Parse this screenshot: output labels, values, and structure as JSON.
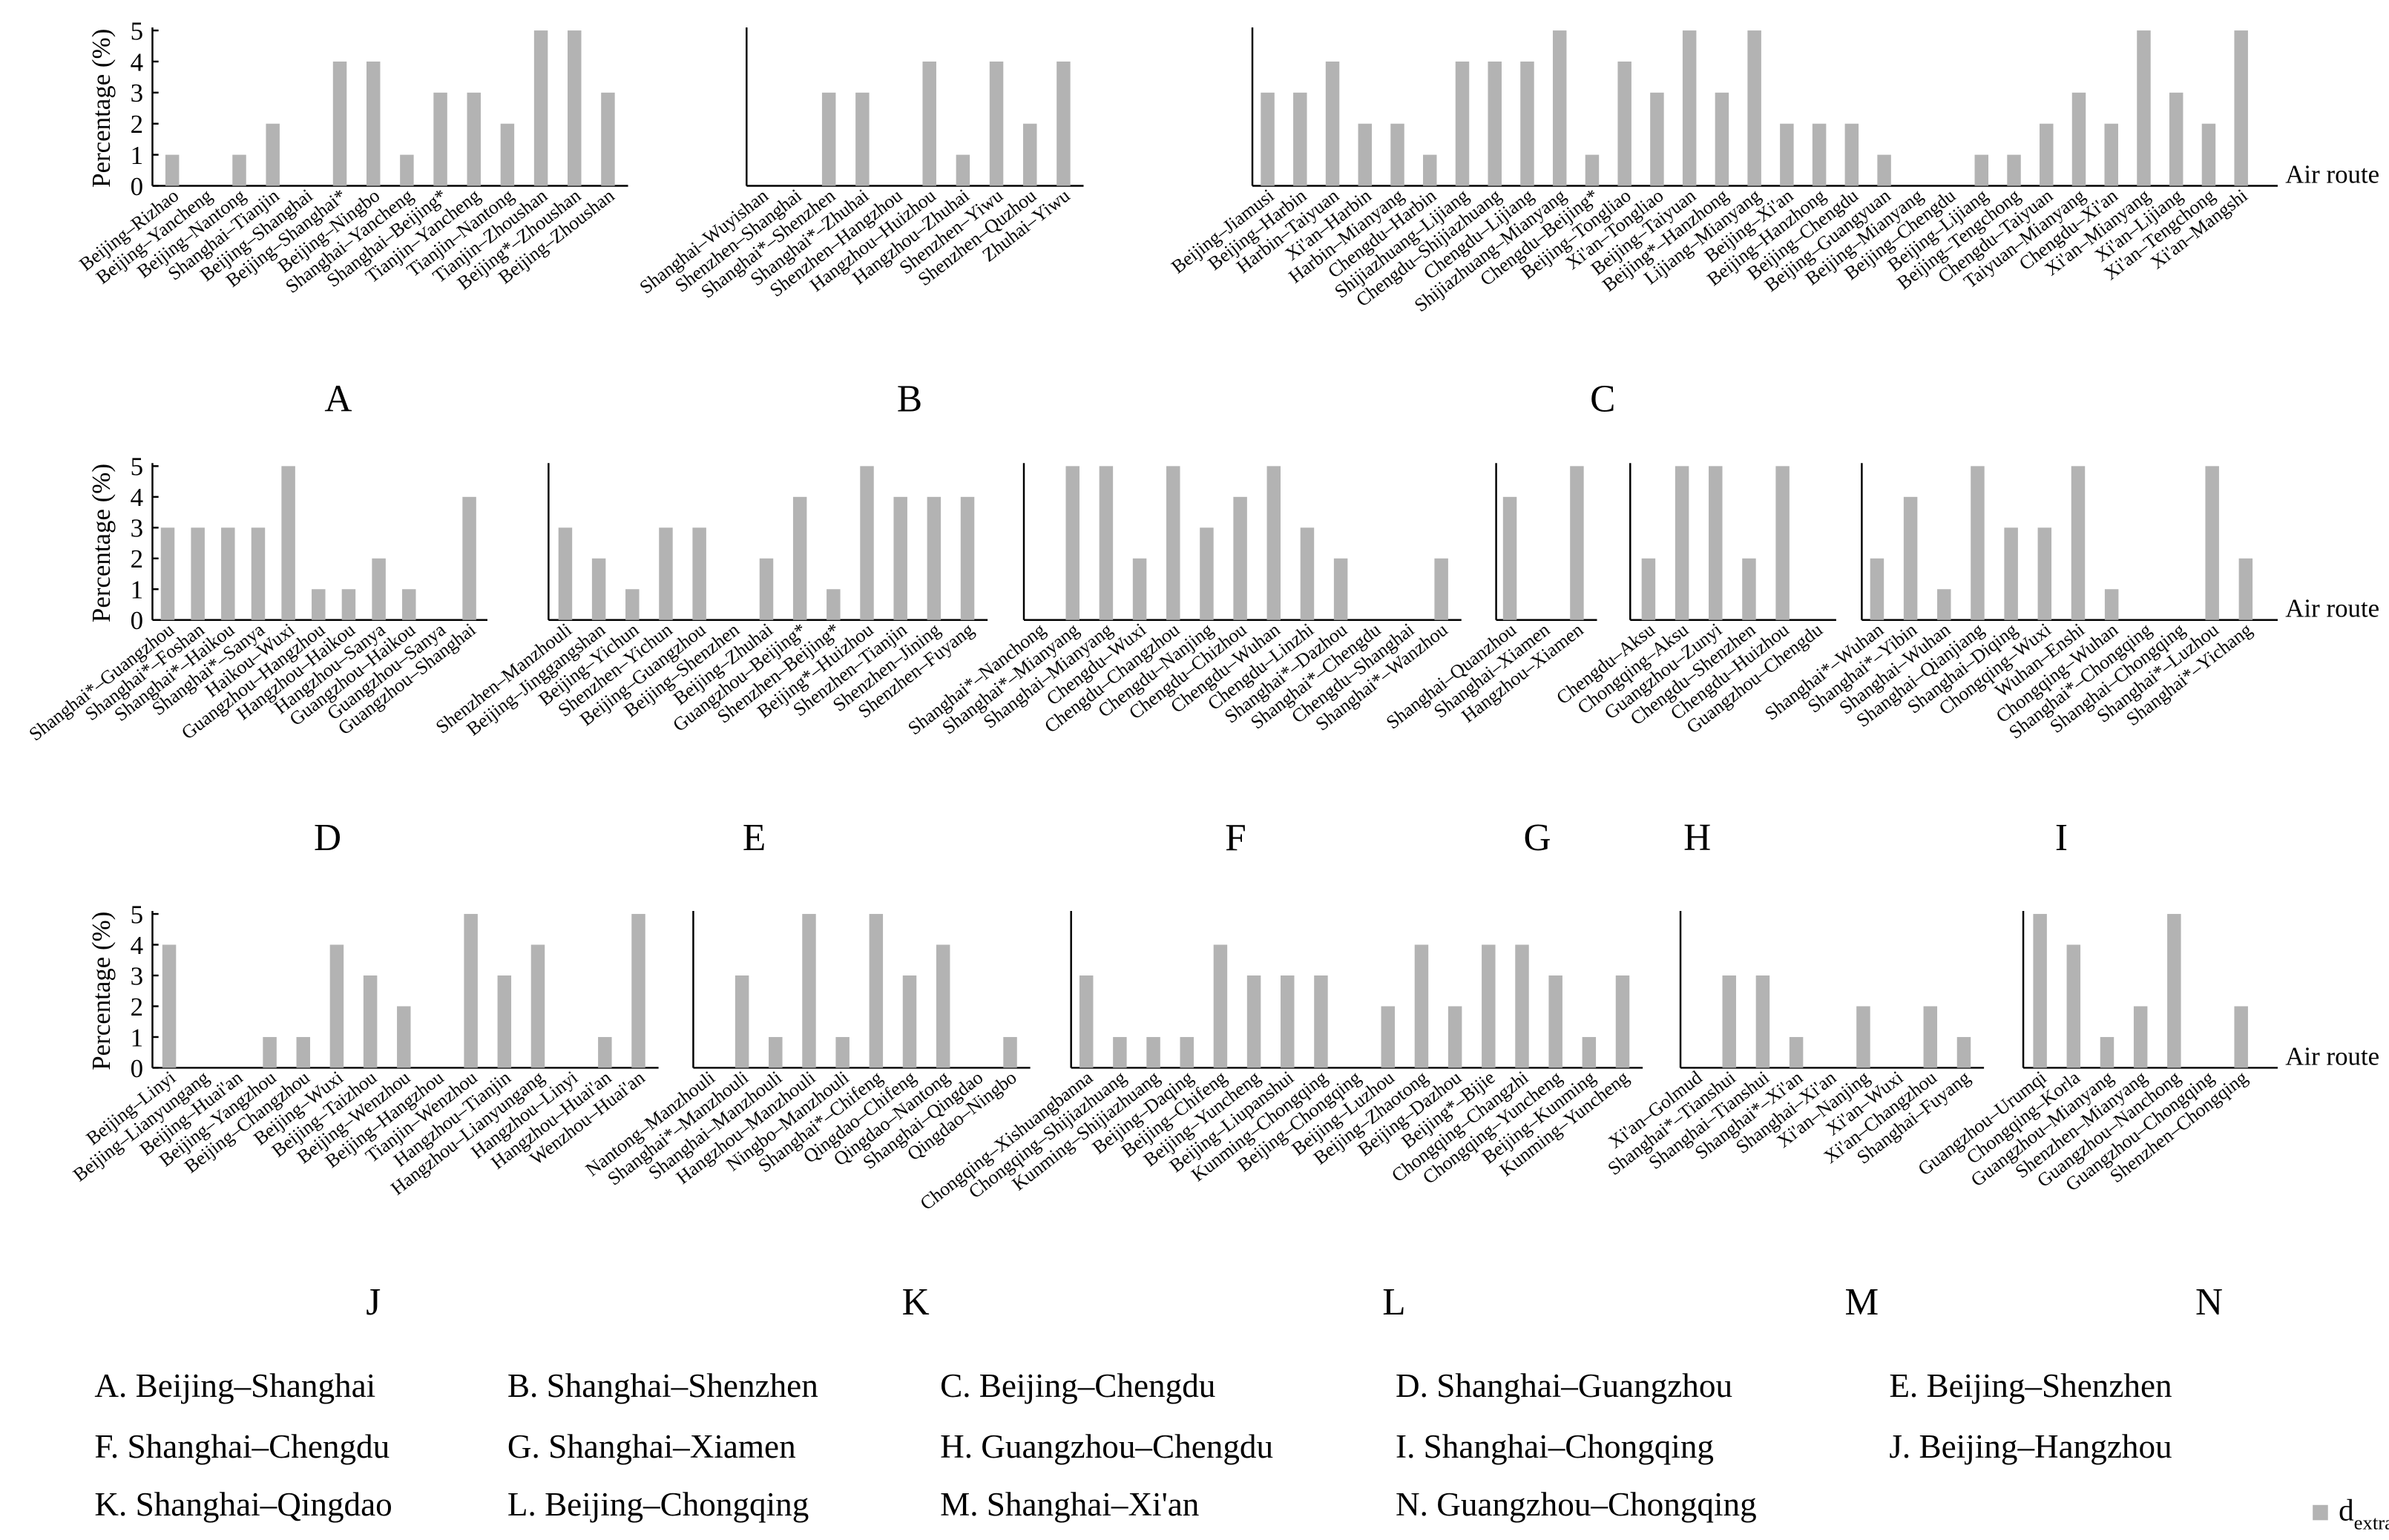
{
  "chart_data": [
    {
      "type": "bar",
      "title": "A",
      "caption": "A. Beijing–Shanghai",
      "ylabel": "Percentage (%)",
      "color": "#b3b3b3",
      "ylim": [
        0,
        5
      ],
      "yticks": [
        0,
        1,
        2,
        3,
        4,
        5
      ],
      "categories": [
        "Beijing–Rizhao",
        "Beijing–Yancheng",
        "Beijing–Nantong",
        "Shanghai–Tianjin",
        "Beijing–Shanghai",
        "Beijing–Shanghai*",
        "Beijing–Ningbo",
        "Shanghai–Yancheng",
        "Shanghai–Beijing*",
        "Tianjin–Yancheng",
        "Tianjin–Nantong",
        "Tianjin–Zhoushan",
        "Beijing*–Zhoushan",
        "Beijing–Zhoushan"
      ],
      "values": [
        1,
        0,
        1,
        2,
        0,
        4,
        4,
        1,
        3,
        3,
        2,
        5,
        5,
        3
      ]
    },
    {
      "type": "bar",
      "title": "B",
      "caption": "B. Shanghai–Shenzhen",
      "color": "#b3b3b3",
      "ylim": [
        0,
        5
      ],
      "categories": [
        "Shanghai–Wuyishan",
        "Shenzhen–Shanghai",
        "Shanghai*–Shenzhen",
        "Shanghai*–Zhuhai",
        "Shenzhen–Hangzhou",
        "Hangzhou–Huizhou",
        "Hangzhou–Zhuhai",
        "Shenzhen–Yiwu",
        "Shenzhen–Quzhou",
        "Zhuhai–Yiwu"
      ],
      "values": [
        0,
        0,
        3,
        3,
        0,
        4,
        1,
        4,
        2,
        4
      ]
    },
    {
      "type": "bar",
      "title": "C",
      "caption": "C. Beijing–Chengdu",
      "xlabel": "Air route",
      "color": "#b3b3b3",
      "ylim": [
        0,
        5
      ],
      "categories": [
        "Beijing–Jiamusi",
        "Beijing–Harbin",
        "Harbin–Taiyuan",
        "Xi'an–Harbin",
        "Harbin–Mianyang",
        "Chengdu–Harbin",
        "Shijiazhuang–Lijiang",
        "Chengdu–Shijiazhuang",
        "Chengdu–Lijiang",
        "Shijiazhuang–Mianyang",
        "Chengdu–Beijing*",
        "Beijing–Tongliao",
        "Xi'an–Tongliao",
        "Beijing–Taiyuan",
        "Beijing*–Hanzhong",
        "Lijiang–Mianyang",
        "Beijing–Xi'an",
        "Beijing–Hanzhong",
        "Beijing–Chengdu",
        "Beijing–Guangyuan",
        "Beijing–Mianyang",
        "Beijing–Chengdu",
        "Beijing–Lijiang",
        "Beijing–Tengchong",
        "Chengdu–Taiyuan",
        "Taiyuan–Mianyang",
        "Chengdu–Xi'an",
        "Xi'an–Mianyang",
        "Xi'an–Lijiang",
        "Xi'an–Tengchong",
        "Xi'an–Mangshi"
      ],
      "values": [
        3,
        3,
        4,
        2,
        2,
        1,
        4,
        4,
        4,
        5,
        1,
        4,
        3,
        5,
        3,
        5,
        2,
        2,
        2,
        1,
        0,
        0,
        1,
        1,
        2,
        3,
        2,
        5,
        3,
        2,
        5
      ]
    },
    {
      "type": "bar",
      "title": "D",
      "caption": "D. Shanghai–Guangzhou",
      "ylabel": "Percentage (%)",
      "color": "#b3b3b3",
      "ylim": [
        0,
        5
      ],
      "yticks": [
        0,
        1,
        2,
        3,
        4,
        5
      ],
      "categories": [
        "Shanghai*–Guangzhou",
        "Shanghai*–Foshan",
        "Shanghai*–Haikou",
        "Shanghai*–Sanya",
        "Haikou–Wuxi",
        "Guangzhou–Hangzhou",
        "Hangzhou–Haikou",
        "Hangzhou–Sanya",
        "Guangzhou–Haikou",
        "Guangzhou–Sanya",
        "Guangzhou–Shanghai"
      ],
      "values": [
        3,
        3,
        3,
        3,
        5,
        1,
        1,
        2,
        1,
        0,
        4
      ]
    },
    {
      "type": "bar",
      "title": "E",
      "caption": "E. Beijing–Shenzhen",
      "color": "#b3b3b3",
      "ylim": [
        0,
        5
      ],
      "categories": [
        "Shenzhen–Manzhouli",
        "Beijing–Jinggangshan",
        "Beijing–Yichun",
        "Shenzhen–Yichun",
        "Beijing–Guangzhou",
        "Beijing–Shenzhen",
        "Beijing–Zhuhai",
        "Guangzhou–Beijing*",
        "Shenzhen–Beijing*",
        "Beijing*–Huizhou",
        "Shenzhen–Tianjin",
        "Shenzhen–Jining",
        "Shenzhen–Fuyang"
      ],
      "values": [
        3,
        2,
        1,
        3,
        3,
        0,
        2,
        4,
        1,
        5,
        4,
        4,
        4
      ]
    },
    {
      "type": "bar",
      "title": "F",
      "caption": "F. Shanghai–Chengdu",
      "color": "#b3b3b3",
      "ylim": [
        0,
        5
      ],
      "categories": [
        "Shanghai*–Nanchong",
        "Shanghai*–Mianyang",
        "Shanghai–Mianyang",
        "Chengdu–Wuxi",
        "Chengdu–Changzhou",
        "Chengdu–Nanjing",
        "Chengdu–Chizhou",
        "Chengdu–Wuhan",
        "Chengdu–Linzhi",
        "Shanghai*–Dazhou",
        "Shanghai*–Chengdu",
        "Chengdu–Shanghai",
        "Shanghai*–Wanzhou"
      ],
      "values": [
        0,
        5,
        5,
        2,
        5,
        3,
        4,
        5,
        3,
        2,
        0,
        0,
        2
      ]
    },
    {
      "type": "bar",
      "title": "G",
      "caption": "G. Shanghai–Xiamen",
      "color": "#b3b3b3",
      "ylim": [
        0,
        5
      ],
      "categories": [
        "Shanghai–Quanzhou",
        "Shanghai–Xiamen",
        "Hangzhou–Xiamen"
      ],
      "values": [
        4,
        0,
        5
      ]
    },
    {
      "type": "bar",
      "title": "H",
      "caption": "H. Guangzhou–Chengdu",
      "color": "#b3b3b3",
      "ylim": [
        0,
        5
      ],
      "categories": [
        "Chengdu–Aksu",
        "Chongqing–Aksu",
        "Guangzhou–Zunyi",
        "Chengdu–Shenzhen",
        "Chengdu–Huizhou",
        "Guangzhou–Chengdu"
      ],
      "values": [
        2,
        5,
        5,
        2,
        5,
        0
      ]
    },
    {
      "type": "bar",
      "title": "I",
      "caption": "I. Shanghai–Chongqing",
      "xlabel": "Air route",
      "color": "#b3b3b3",
      "ylim": [
        0,
        5
      ],
      "categories": [
        "Shanghai*–Wuhan",
        "Shanghai*–Yibin",
        "Shanghai–Wuhan",
        "Shanghai–Qianjiang",
        "Shanghai–Diqing",
        "Chongqing–Wuxi",
        "Wuhan–Enshi",
        "Chongqing–Wuhan",
        "Shanghai*–Chongqing",
        "Shanghai–Chongqing",
        "Shanghai*–Luzhou",
        "Shanghai*–Yichang"
      ],
      "values": [
        2,
        4,
        1,
        5,
        3,
        3,
        5,
        1,
        0,
        0,
        5,
        2
      ]
    },
    {
      "type": "bar",
      "title": "J",
      "caption": "J. Beijing–Hangzhou",
      "ylabel": "Percentage (%)",
      "color": "#b3b3b3",
      "ylim": [
        0,
        5
      ],
      "yticks": [
        0,
        1,
        2,
        3,
        4,
        5
      ],
      "categories": [
        "Beijing–Linyi",
        "Beijing–Lianyungang",
        "Beijing–Huai'an",
        "Beijing–Yangzhou",
        "Beijing–Changzhou",
        "Beijing–Wuxi",
        "Beijing–Taizhou",
        "Beijing–Wenzhou",
        "Beijing–Hangzhou",
        "Tianjin–Wenzhou",
        "Hangzhou–Tianjin",
        "Hangzhou–Lianyungang",
        "Hangzhou–Linyi",
        "Hangzhou–Huai'an",
        "Wenzhou–Huai'an"
      ],
      "values": [
        4,
        0,
        0,
        1,
        1,
        4,
        3,
        2,
        0,
        5,
        3,
        4,
        0,
        1,
        5
      ]
    },
    {
      "type": "bar",
      "title": "K",
      "caption": "K. Shanghai–Qingdao",
      "color": "#b3b3b3",
      "ylim": [
        0,
        5
      ],
      "categories": [
        "Nantong–Manzhouli",
        "Shanghai*–Manzhouli",
        "Shanghai–Manzhouli",
        "Hangzhou–Manzhouli",
        "Ningbo–Manzhouli",
        "Shanghai*–Chifeng",
        "Qingdao–Chifeng",
        "Qingdao–Nantong",
        "Shanghai–Qingdao",
        "Qingdao–Ningbo"
      ],
      "values": [
        0,
        3,
        1,
        5,
        1,
        5,
        3,
        4,
        0,
        1
      ]
    },
    {
      "type": "bar",
      "title": "L",
      "caption": "L. Beijing–Chongqing",
      "color": "#b3b3b3",
      "ylim": [
        0,
        5
      ],
      "categories": [
        "Chongqing–Xishuangbanna",
        "Chongqing–Shijiazhuang",
        "Kunming–Shijiazhuang",
        "Beijing–Daqing",
        "Beijing–Chifeng",
        "Beijing–Yuncheng",
        "Beijing–Liupanshui",
        "Kunming–Chongqing",
        "Beijing–Chongqing",
        "Beijing–Luzhou",
        "Beijing–Zhaotong",
        "Beijing–Dazhou",
        "Beijing*–Bijie",
        "Chongqing–Changzhi",
        "Chongqing–Yuncheng",
        "Beijing–Kunming",
        "Kunming–Yuncheng"
      ],
      "values": [
        3,
        1,
        1,
        1,
        4,
        3,
        3,
        3,
        0,
        2,
        4,
        2,
        4,
        4,
        3,
        1,
        3
      ]
    },
    {
      "type": "bar",
      "title": "M",
      "caption": "M. Shanghai–Xi'an",
      "color": "#b3b3b3",
      "ylim": [
        0,
        5
      ],
      "categories": [
        "Xi'an–Golmud",
        "Shanghai*–Tianshui",
        "Shanghai–Tianshui",
        "Shanghai*–Xi'an",
        "Shanghai–Xi'an",
        "Xi'an–Nanjing",
        "Xi'an–Wuxi",
        "Xi'an–Changzhou",
        "Shanghai–Fuyang"
      ],
      "values": [
        0,
        3,
        3,
        1,
        0,
        2,
        0,
        2,
        1
      ]
    },
    {
      "type": "bar",
      "title": "N",
      "caption": "N. Guangzhou–Chongqing",
      "xlabel": "Air route",
      "color": "#b3b3b3",
      "ylim": [
        0,
        5
      ],
      "categories": [
        "Guangzhou–Urumqi",
        "Chongqing–Korla",
        "Guangzhou–Mianyang",
        "Shenzhen–Mianyang",
        "Guangzhou–Nanchong",
        "Guangzhou–Chongqing",
        "Shenzhen–Chongqing"
      ],
      "values": [
        5,
        4,
        1,
        2,
        5,
        0,
        2
      ]
    }
  ],
  "legend": {
    "label": "d",
    "sub": "extra",
    "color": "#b3b3b3"
  }
}
